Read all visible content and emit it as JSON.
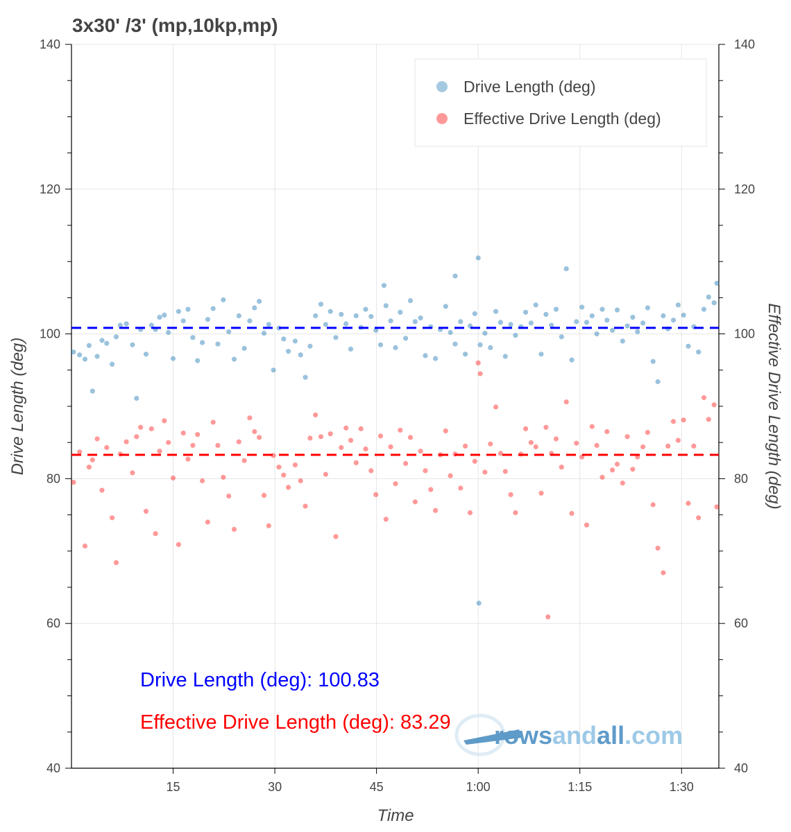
{
  "chart_data": {
    "type": "scatter",
    "title": "3x30' /3' (mp,10kp,mp)",
    "xlabel": "Time",
    "ylabel": "Drive Length (deg)",
    "ylabel_right": "Effective Drive Length (deg)",
    "ylim": [
      40,
      140
    ],
    "xlim_minutes": [
      0,
      95.5
    ],
    "x_ticks": [
      {
        "value": 15,
        "label": "15"
      },
      {
        "value": 30,
        "label": "30"
      },
      {
        "value": 45,
        "label": "45"
      },
      {
        "value": 60,
        "label": "1:00"
      },
      {
        "value": 75,
        "label": "1:15"
      },
      {
        "value": 90,
        "label": "1:30"
      }
    ],
    "y_ticks": [
      40,
      60,
      80,
      100,
      120,
      140
    ],
    "grid": true,
    "legend_position": "top-right",
    "series": [
      {
        "name": "Drive Length (deg)",
        "color": "#1f77b4",
        "points": [
          [
            0.3,
            97.5
          ],
          [
            1.2,
            97.1
          ],
          [
            2.0,
            96.5
          ],
          [
            2.6,
            98.4
          ],
          [
            3.1,
            92.1
          ],
          [
            3.8,
            96.9
          ],
          [
            4.5,
            99.1
          ],
          [
            5.2,
            98.7
          ],
          [
            6.0,
            95.8
          ],
          [
            6.6,
            99.6
          ],
          [
            7.2,
            101.2
          ],
          [
            8.1,
            101.4
          ],
          [
            9.0,
            98.5
          ],
          [
            9.6,
            91.1
          ],
          [
            10.2,
            100.6
          ],
          [
            11.0,
            97.2
          ],
          [
            11.8,
            101.2
          ],
          [
            12.4,
            100.6
          ],
          [
            13.0,
            102.3
          ],
          [
            13.7,
            102.6
          ],
          [
            14.3,
            100.2
          ],
          [
            15.0,
            96.6
          ],
          [
            15.8,
            103.1
          ],
          [
            16.5,
            101.8
          ],
          [
            17.2,
            103.4
          ],
          [
            17.9,
            99.5
          ],
          [
            18.6,
            96.3
          ],
          [
            19.3,
            98.8
          ],
          [
            20.1,
            102.0
          ],
          [
            20.9,
            103.5
          ],
          [
            21.6,
            98.6
          ],
          [
            22.4,
            104.7
          ],
          [
            23.2,
            100.3
          ],
          [
            24.0,
            96.5
          ],
          [
            24.7,
            102.5
          ],
          [
            25.5,
            98.0
          ],
          [
            26.3,
            101.8
          ],
          [
            27.0,
            103.6
          ],
          [
            27.7,
            104.5
          ],
          [
            28.4,
            100.1
          ],
          [
            29.1,
            101.3
          ],
          [
            29.8,
            95.0
          ],
          [
            30.6,
            100.8
          ],
          [
            31.3,
            99.3
          ],
          [
            32.0,
            97.6
          ],
          [
            33.0,
            99.0
          ],
          [
            33.8,
            97.1
          ],
          [
            34.5,
            94.0
          ],
          [
            35.2,
            98.3
          ],
          [
            36.0,
            102.5
          ],
          [
            36.8,
            104.1
          ],
          [
            37.5,
            101.3
          ],
          [
            38.2,
            103.1
          ],
          [
            39.0,
            99.5
          ],
          [
            39.8,
            102.7
          ],
          [
            40.5,
            101.4
          ],
          [
            41.2,
            97.9
          ],
          [
            42.0,
            102.5
          ],
          [
            42.7,
            100.9
          ],
          [
            43.4,
            103.4
          ],
          [
            44.2,
            102.4
          ],
          [
            44.9,
            100.5
          ],
          [
            45.6,
            98.5
          ],
          [
            46.4,
            103.9
          ],
          [
            47.1,
            101.8
          ],
          [
            47.8,
            98.1
          ],
          [
            48.5,
            103.0
          ],
          [
            49.3,
            99.4
          ],
          [
            50.0,
            104.6
          ],
          [
            50.7,
            101.7
          ],
          [
            51.5,
            102.2
          ],
          [
            52.2,
            97.0
          ],
          [
            53.0,
            101.0
          ],
          [
            53.7,
            96.6
          ],
          [
            54.4,
            100.6
          ],
          [
            55.2,
            103.8
          ],
          [
            55.9,
            100.2
          ],
          [
            56.6,
            98.6
          ],
          [
            57.4,
            101.7
          ],
          [
            58.1,
            97.2
          ],
          [
            58.8,
            101.1
          ],
          [
            59.5,
            102.8
          ],
          [
            60.0,
            110.5
          ],
          [
            60.3,
            98.5
          ],
          [
            61.0,
            100.1
          ],
          [
            61.8,
            98.1
          ],
          [
            62.6,
            103.1
          ],
          [
            63.3,
            101.6
          ],
          [
            64.0,
            96.9
          ],
          [
            64.8,
            101.3
          ],
          [
            65.5,
            99.8
          ],
          [
            66.3,
            101.0
          ],
          [
            67.0,
            103.0
          ],
          [
            67.8,
            101.5
          ],
          [
            68.5,
            104.0
          ],
          [
            69.3,
            97.2
          ],
          [
            70.0,
            102.7
          ],
          [
            70.8,
            101.2
          ],
          [
            71.5,
            103.4
          ],
          [
            72.3,
            99.6
          ],
          [
            73.0,
            109.0
          ],
          [
            73.8,
            96.4
          ],
          [
            74.5,
            101.7
          ],
          [
            75.3,
            103.7
          ],
          [
            76.0,
            101.6
          ],
          [
            76.8,
            102.5
          ],
          [
            77.5,
            100.0
          ],
          [
            78.3,
            103.4
          ],
          [
            79.0,
            101.9
          ],
          [
            79.8,
            100.5
          ],
          [
            80.5,
            103.3
          ],
          [
            81.3,
            99.0
          ],
          [
            82.0,
            101.1
          ],
          [
            82.8,
            102.3
          ],
          [
            83.5,
            100.3
          ],
          [
            84.3,
            101.5
          ],
          [
            85.0,
            103.6
          ],
          [
            85.8,
            96.2
          ],
          [
            86.5,
            93.4
          ],
          [
            87.3,
            102.5
          ],
          [
            88.0,
            100.7
          ],
          [
            88.8,
            101.9
          ],
          [
            89.5,
            104.0
          ],
          [
            90.3,
            102.6
          ],
          [
            91.0,
            98.3
          ],
          [
            91.8,
            101.0
          ],
          [
            92.5,
            97.5
          ],
          [
            93.3,
            103.4
          ],
          [
            94.0,
            105.1
          ],
          [
            94.8,
            104.3
          ],
          [
            95.2,
            107.0
          ],
          [
            60.1,
            62.8
          ],
          [
            56.6,
            108.0
          ],
          [
            46.1,
            106.7
          ]
        ]
      },
      {
        "name": "Effective Drive Length (deg)",
        "color": "#ff0000",
        "points": [
          [
            0.3,
            79.5
          ],
          [
            1.2,
            83.7
          ],
          [
            2.0,
            70.7
          ],
          [
            2.6,
            81.6
          ],
          [
            3.1,
            82.6
          ],
          [
            3.8,
            85.5
          ],
          [
            4.5,
            78.4
          ],
          [
            5.2,
            84.3
          ],
          [
            6.0,
            74.6
          ],
          [
            6.6,
            68.4
          ],
          [
            7.2,
            83.4
          ],
          [
            8.1,
            85.1
          ],
          [
            9.0,
            80.8
          ],
          [
            9.6,
            85.8
          ],
          [
            10.2,
            87.1
          ],
          [
            11.0,
            75.5
          ],
          [
            11.8,
            86.9
          ],
          [
            12.4,
            72.4
          ],
          [
            13.0,
            83.8
          ],
          [
            13.7,
            88.0
          ],
          [
            14.3,
            85.0
          ],
          [
            15.0,
            80.1
          ],
          [
            15.8,
            70.9
          ],
          [
            16.5,
            86.3
          ],
          [
            17.2,
            82.7
          ],
          [
            17.9,
            84.6
          ],
          [
            18.6,
            86.1
          ],
          [
            19.3,
            79.7
          ],
          [
            20.1,
            74.0
          ],
          [
            20.9,
            87.8
          ],
          [
            21.6,
            84.6
          ],
          [
            22.4,
            80.2
          ],
          [
            23.2,
            77.6
          ],
          [
            24.0,
            73.0
          ],
          [
            24.7,
            85.1
          ],
          [
            25.5,
            82.5
          ],
          [
            26.3,
            88.4
          ],
          [
            27.0,
            86.5
          ],
          [
            27.7,
            85.7
          ],
          [
            28.4,
            77.7
          ],
          [
            29.1,
            73.5
          ],
          [
            29.8,
            83.2
          ],
          [
            30.6,
            81.6
          ],
          [
            31.3,
            80.5
          ],
          [
            32.0,
            78.8
          ],
          [
            33.0,
            81.9
          ],
          [
            33.8,
            79.7
          ],
          [
            34.5,
            76.2
          ],
          [
            35.2,
            85.6
          ],
          [
            36.0,
            88.8
          ],
          [
            36.8,
            85.8
          ],
          [
            37.5,
            80.6
          ],
          [
            38.2,
            86.2
          ],
          [
            39.0,
            72.0
          ],
          [
            39.8,
            84.3
          ],
          [
            40.5,
            87.0
          ],
          [
            41.2,
            85.3
          ],
          [
            42.0,
            82.2
          ],
          [
            42.7,
            86.9
          ],
          [
            43.4,
            84.1
          ],
          [
            44.2,
            81.1
          ],
          [
            44.9,
            77.8
          ],
          [
            45.6,
            85.9
          ],
          [
            46.4,
            74.4
          ],
          [
            47.1,
            84.4
          ],
          [
            47.8,
            79.3
          ],
          [
            48.5,
            86.7
          ],
          [
            49.3,
            82.1
          ],
          [
            50.0,
            85.7
          ],
          [
            50.7,
            76.8
          ],
          [
            51.5,
            83.8
          ],
          [
            52.2,
            81.1
          ],
          [
            53.0,
            78.5
          ],
          [
            53.7,
            75.6
          ],
          [
            54.4,
            83.3
          ],
          [
            55.2,
            86.6
          ],
          [
            55.9,
            80.4
          ],
          [
            56.6,
            83.4
          ],
          [
            57.4,
            78.7
          ],
          [
            58.1,
            84.5
          ],
          [
            58.8,
            75.3
          ],
          [
            59.5,
            82.4
          ],
          [
            60.0,
            96.0
          ],
          [
            60.3,
            94.5
          ],
          [
            61.0,
            80.9
          ],
          [
            61.8,
            84.8
          ],
          [
            62.6,
            89.9
          ],
          [
            63.3,
            83.5
          ],
          [
            64.0,
            81.0
          ],
          [
            64.8,
            77.8
          ],
          [
            65.5,
            75.3
          ],
          [
            66.3,
            83.4
          ],
          [
            67.0,
            86.9
          ],
          [
            67.8,
            85.0
          ],
          [
            68.5,
            84.4
          ],
          [
            69.3,
            78.0
          ],
          [
            70.0,
            87.1
          ],
          [
            70.8,
            83.5
          ],
          [
            71.5,
            85.5
          ],
          [
            72.3,
            81.6
          ],
          [
            73.0,
            90.6
          ],
          [
            73.8,
            75.2
          ],
          [
            74.5,
            84.9
          ],
          [
            75.3,
            83.0
          ],
          [
            76.0,
            73.6
          ],
          [
            76.8,
            87.2
          ],
          [
            77.5,
            84.6
          ],
          [
            78.3,
            80.2
          ],
          [
            79.0,
            86.5
          ],
          [
            79.8,
            81.2
          ],
          [
            80.5,
            82.0
          ],
          [
            81.3,
            79.4
          ],
          [
            82.0,
            85.8
          ],
          [
            82.8,
            81.3
          ],
          [
            83.5,
            83.0
          ],
          [
            84.3,
            84.4
          ],
          [
            85.0,
            86.4
          ],
          [
            85.8,
            76.4
          ],
          [
            86.5,
            70.4
          ],
          [
            87.3,
            67.0
          ],
          [
            88.0,
            84.5
          ],
          [
            88.8,
            87.9
          ],
          [
            89.5,
            85.3
          ],
          [
            90.3,
            88.1
          ],
          [
            91.0,
            76.6
          ],
          [
            91.8,
            84.5
          ],
          [
            92.5,
            74.6
          ],
          [
            93.3,
            91.2
          ],
          [
            94.0,
            88.2
          ],
          [
            94.8,
            90.2
          ],
          [
            95.2,
            76.1
          ],
          [
            70.3,
            60.9
          ]
        ]
      }
    ],
    "reference_lines": [
      {
        "series": "Drive Length (deg)",
        "value": 100.83,
        "color": "#0000ff",
        "style": "dashed"
      },
      {
        "series": "Effective Drive Length (deg)",
        "value": 83.29,
        "color": "#ff0000",
        "style": "dashed"
      }
    ],
    "annotations": [
      {
        "text": "Drive Length (deg): 100.83",
        "color": "#0000ff"
      },
      {
        "text": "Effective Drive Length (deg): 83.29",
        "color": "#ff0000"
      }
    ]
  },
  "watermark": {
    "prefix": "rows",
    "middle": "and",
    "suffix": "all",
    "domain": ".com"
  }
}
